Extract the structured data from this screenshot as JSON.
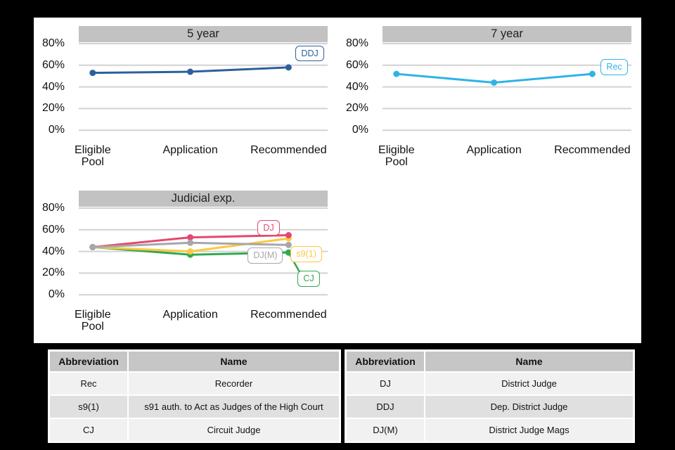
{
  "colors": {
    "background": "#000000",
    "panel_background": "#ffffff",
    "grid_line": "#d2d2d2",
    "title_bar_background": "#c2c2c2",
    "table_header_background": "#c6c6c6",
    "table_row_light": "#f1f1f1",
    "table_row_dark": "#e0e0e0",
    "axis_text": "#111111"
  },
  "chart_data": [
    {
      "type": "line",
      "title": "5 year",
      "categories": [
        "Eligible Pool",
        "Application",
        "Recommended"
      ],
      "y_ticks": [
        "80%",
        "60%",
        "40%",
        "20%",
        "0%"
      ],
      "ylim": [
        0,
        88
      ],
      "grid": true,
      "legend_position": "end-of-line-labels",
      "series": [
        {
          "name": "DDJ",
          "color": "#2d5f9c",
          "values": [
            53,
            54,
            58
          ],
          "label_placement": "above-right"
        }
      ]
    },
    {
      "type": "line",
      "title": "7 year",
      "categories": [
        "Eligible Pool",
        "Application",
        "Recommended"
      ],
      "y_ticks": [
        "80%",
        "60%",
        "40%",
        "20%",
        "0%"
      ],
      "ylim": [
        0,
        88
      ],
      "grid": true,
      "legend_position": "end-of-line-labels",
      "series": [
        {
          "name": "Rec",
          "color": "#2fb3e6",
          "values": [
            52,
            44,
            52
          ],
          "label_placement": "right"
        }
      ]
    },
    {
      "type": "line",
      "title": "Judicial exp.",
      "categories": [
        "Eligible Pool",
        "Application",
        "Recommended"
      ],
      "y_ticks": [
        "80%",
        "60%",
        "40%",
        "20%",
        "0%"
      ],
      "ylim": [
        0,
        88
      ],
      "grid": true,
      "legend_position": "end-of-line-labels",
      "series": [
        {
          "name": "CJ",
          "color": "#33a851",
          "values": [
            44,
            37,
            39
          ],
          "label_placement": "below-leader"
        },
        {
          "name": "s9(1)",
          "color": "#fbc843",
          "values": [
            44,
            40,
            52
          ],
          "label_placement": "right-below"
        },
        {
          "name": "DJ",
          "color": "#e4486e",
          "values": [
            44,
            53,
            55
          ],
          "label_placement": "above-left"
        },
        {
          "name": "DJ(M)",
          "color": "#a7a6ab",
          "values": [
            44,
            48,
            46
          ],
          "label_placement": "left-below"
        }
      ]
    }
  ],
  "legend_tables": [
    {
      "headers": [
        "Abbreviation",
        "Name"
      ],
      "rows": [
        [
          "Rec",
          "Recorder"
        ],
        [
          "s9(1)",
          "s91 auth. to Act as Judges of the High Court"
        ],
        [
          "CJ",
          "Circuit Judge"
        ]
      ]
    },
    {
      "headers": [
        "Abbreviation",
        "Name"
      ],
      "rows": [
        [
          "DJ",
          "District Judge"
        ],
        [
          "DDJ",
          "Dep. District Judge"
        ],
        [
          "DJ(M)",
          "District Judge Mags"
        ]
      ]
    }
  ]
}
